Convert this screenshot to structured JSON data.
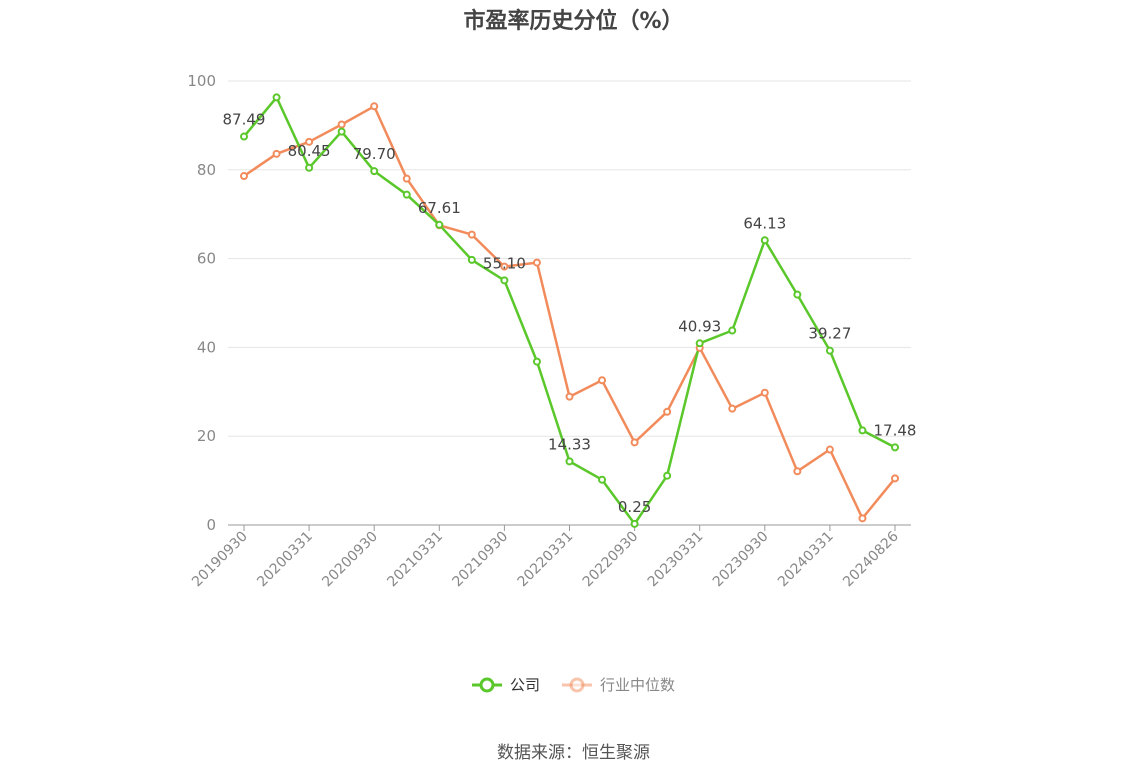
{
  "colors": {
    "company": "#5ac72a",
    "industry": "#f28b5b",
    "grid": "#e5e5e5",
    "axis": "#999999"
  },
  "source_text": "数据来源：恒生聚源",
  "chart_data": {
    "type": "line",
    "title": "市盈率历史分位（%）",
    "xlabel": "",
    "ylabel": "",
    "ylim": [
      0,
      100
    ],
    "yticks": [
      0,
      20,
      40,
      60,
      80,
      100
    ],
    "grid": true,
    "legend_position": "bottom",
    "x": [
      "20190930",
      "20191231",
      "20200331",
      "20200630",
      "20200930",
      "20201231",
      "20210331",
      "20210630",
      "20210930",
      "20211231",
      "20220331",
      "20220630",
      "20220930",
      "20221231",
      "20230331",
      "20230630",
      "20230930",
      "20231231",
      "20240331",
      "20240630",
      "20240826"
    ],
    "xtick_labels": [
      "20190930",
      "20200331",
      "20200930",
      "20210331",
      "20210930",
      "20220331",
      "20220930",
      "20230331",
      "20230930",
      "20240331",
      "20240826"
    ],
    "series": [
      {
        "name": "公司",
        "values": [
          87.49,
          96.3,
          80.45,
          88.6,
          79.7,
          74.4,
          67.61,
          59.7,
          55.1,
          36.8,
          14.33,
          10.2,
          0.25,
          11.1,
          40.93,
          43.8,
          64.13,
          51.9,
          39.27,
          21.3,
          17.48
        ],
        "labels": [
          "87.49",
          "",
          "80.45",
          "",
          "79.70",
          "",
          "67.61",
          "",
          "55.10",
          "",
          "14.33",
          "",
          "0.25",
          "",
          "40.93",
          "",
          "64.13",
          "",
          "39.27",
          "",
          "17.48"
        ]
      },
      {
        "name": "行业中位数",
        "values": [
          78.6,
          83.6,
          86.3,
          90.2,
          94.3,
          78.0,
          67.5,
          65.4,
          58.2,
          59.1,
          28.9,
          32.6,
          18.6,
          25.5,
          39.9,
          26.2,
          29.8,
          12.1,
          17.0,
          1.5,
          10.5
        ]
      }
    ]
  }
}
